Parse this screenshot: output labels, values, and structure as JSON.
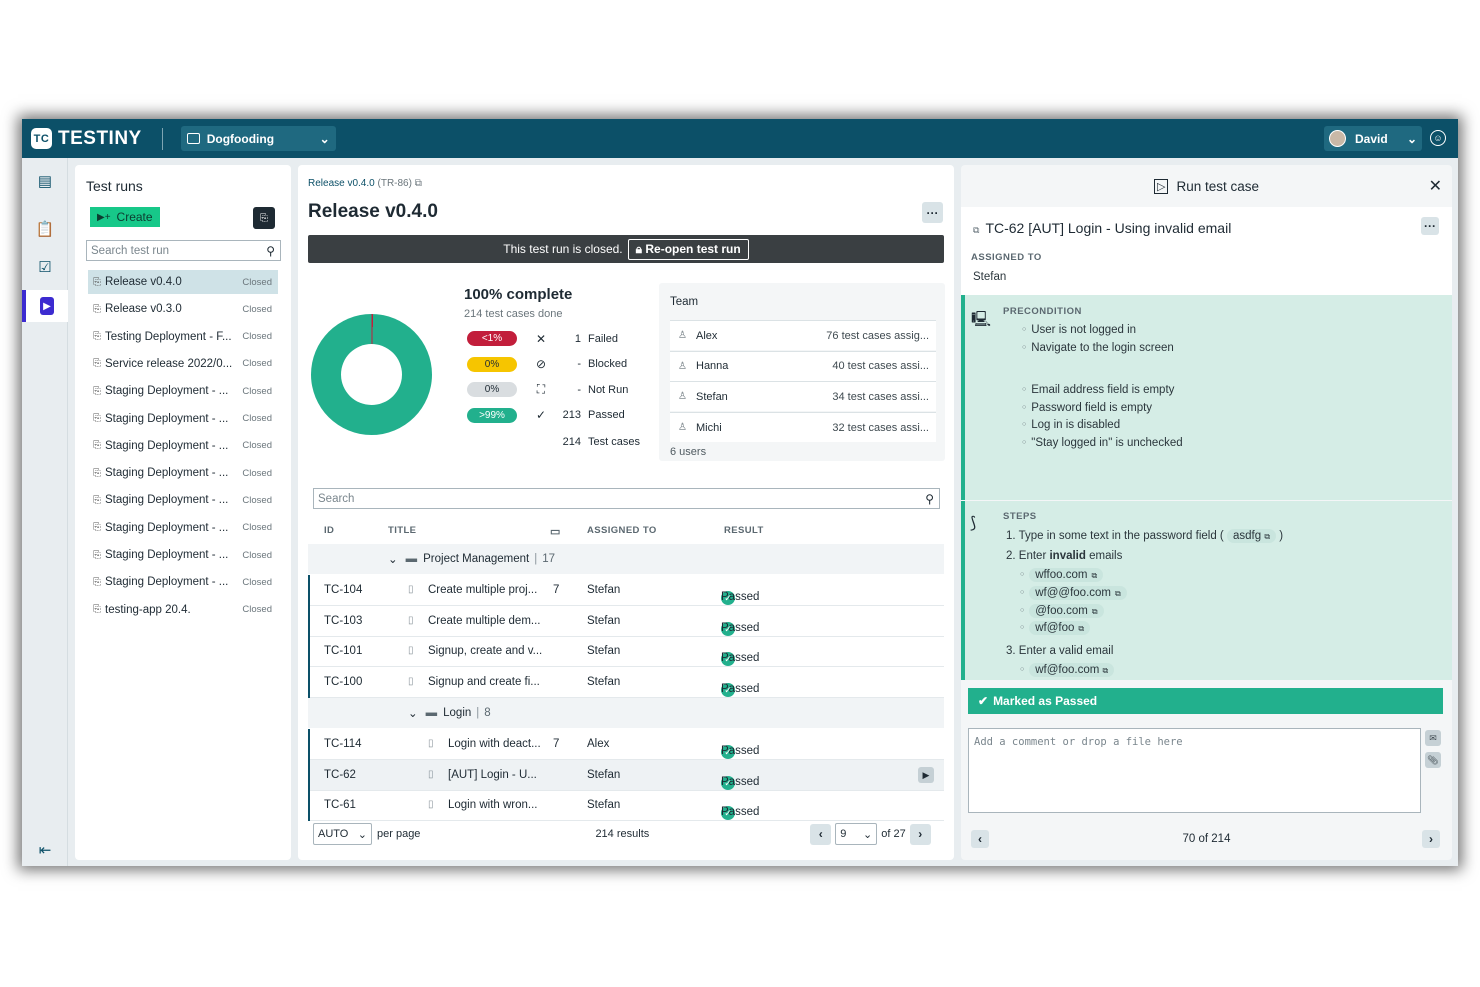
{
  "app": {
    "name": "TESTINY",
    "logo_mark": "TC",
    "workspace": "Dogfooding",
    "user": "David"
  },
  "icons": {
    "chevron": "chevron-down-icon",
    "close": "close-icon",
    "more": "ellipsis-icon",
    "check": "check-icon"
  },
  "colors": {
    "topbar": "#0c5068",
    "accent": "#17c889",
    "passed": "#22b08d",
    "failed": "#c21e3b",
    "blocked": "#f6c500",
    "selected": "#cfe2e7"
  },
  "left": {
    "title": "Test runs",
    "create": "Create",
    "search_placeholder": "Search test run",
    "runs": [
      {
        "name": "Release v0.4.0",
        "status": "Closed"
      },
      {
        "name": "Release v0.3.0",
        "status": "Closed"
      },
      {
        "name": "Testing Deployment - F...",
        "status": "Closed"
      },
      {
        "name": "Service release 2022/0...",
        "status": "Closed"
      },
      {
        "name": "Staging Deployment - ...",
        "status": "Closed"
      },
      {
        "name": "Staging Deployment - ...",
        "status": "Closed"
      },
      {
        "name": "Staging Deployment - ...",
        "status": "Closed"
      },
      {
        "name": "Staging Deployment - ...",
        "status": "Closed"
      },
      {
        "name": "Staging Deployment - ...",
        "status": "Closed"
      },
      {
        "name": "Staging Deployment - ...",
        "status": "Closed"
      },
      {
        "name": "Staging Deployment - ...",
        "status": "Closed"
      },
      {
        "name": "Staging Deployment - ...",
        "status": "Closed"
      },
      {
        "name": "testing-app 20.4.",
        "status": "Closed"
      }
    ]
  },
  "mid": {
    "crumb_name": "Release v0.4.0",
    "crumb_id": "(TR-86)",
    "title": "Release v0.4.0",
    "more": "···",
    "closed_msg": "This test run is closed.",
    "reopen": "Re-open test run",
    "complete": "100% complete",
    "done": "214 test cases done",
    "stats": [
      {
        "pct": "<1%",
        "count": "1",
        "label": "Failed",
        "icon": "✕",
        "bg": "#c21e3b",
        "fg": "#ffffff"
      },
      {
        "pct": "0%",
        "count": "-",
        "label": "Blocked",
        "icon": "⊘",
        "bg": "#f6c500",
        "fg": "#1e2a33"
      },
      {
        "pct": "0%",
        "count": "-",
        "label": "Not Run",
        "icon": "⛶",
        "bg": "#d9dde0",
        "fg": "#1e2a33"
      },
      {
        "pct": ">99%",
        "count": "213",
        "label": "Passed",
        "icon": "✓",
        "bg": "#22b08d",
        "fg": "#ffffff"
      }
    ],
    "total_count": "214",
    "total_label": "Test cases",
    "team": {
      "title": "Team",
      "members": [
        {
          "name": "Alex",
          "assigned": "76 test cases assig..."
        },
        {
          "name": "Hanna",
          "assigned": "40 test cases assi..."
        },
        {
          "name": "Stefan",
          "assigned": "34 test cases assi..."
        },
        {
          "name": "Michi",
          "assigned": "32 test cases assi..."
        }
      ],
      "footer": "6 users"
    },
    "search_placeholder": "Search",
    "columns": {
      "id": "ID",
      "title": "TITLE",
      "assigned": "ASSIGNED TO",
      "result": "RESULT"
    },
    "groups": [
      {
        "name": "Project Management",
        "count": "17"
      },
      {
        "name": "Login",
        "count": "8"
      }
    ],
    "rows_a": [
      {
        "id": "TC-104",
        "title": "Create multiple proj...",
        "comments": "7",
        "assigned": "Stefan",
        "result": "Passed"
      },
      {
        "id": "TC-103",
        "title": "Create multiple dem...",
        "comments": "",
        "assigned": "Stefan",
        "result": "Passed"
      },
      {
        "id": "TC-101",
        "title": "Signup, create and v...",
        "comments": "",
        "assigned": "Stefan",
        "result": "Passed"
      },
      {
        "id": "TC-100",
        "title": "Signup and create fi...",
        "comments": "",
        "assigned": "Stefan",
        "result": "Passed"
      }
    ],
    "rows_b": [
      {
        "id": "TC-114",
        "title": "Login with deact...",
        "comments": "7",
        "assigned": "Alex",
        "result": "Passed"
      },
      {
        "id": "TC-62",
        "title": "[AUT] Login - U...",
        "comments": "",
        "assigned": "Stefan",
        "result": "Passed"
      },
      {
        "id": "TC-61",
        "title": "Login with wron...",
        "comments": "",
        "assigned": "Stefan",
        "result": "Passed"
      }
    ],
    "pager": {
      "size": "AUTO",
      "per_page": "per page",
      "results": "214 results",
      "page": "9",
      "of": "of 27"
    }
  },
  "right": {
    "header": "Run test case",
    "case_title": "TC-62 [AUT] Login - Using invalid email",
    "assigned_label": "ASSIGNED TO",
    "assigned": "Stefan",
    "precondition_label": "PRECONDITION",
    "pre_a": [
      "User is not logged in",
      "Navigate to the login screen"
    ],
    "pre_b": [
      "Email address field is empty",
      "Password field is empty",
      "Log in is disabled",
      "\"Stay logged in\" is unchecked"
    ],
    "steps_label": "STEPS",
    "step1": "1. Type in some text in the password field (",
    "step1_code": "asdfg",
    "step1_end": ")",
    "step2_a": "2. Enter ",
    "step2_b": "invalid",
    "step2_c": " emails",
    "step2_emails": [
      "wffoo.com",
      "wf@@foo.com",
      "@foo.com",
      "wf@foo"
    ],
    "step3": "3. Enter a valid email",
    "step3_email": "wf@foo.com",
    "marked": "Marked as Passed",
    "comment_placeholder": "Add a comment or drop a file here",
    "nav": "70 of 214"
  }
}
